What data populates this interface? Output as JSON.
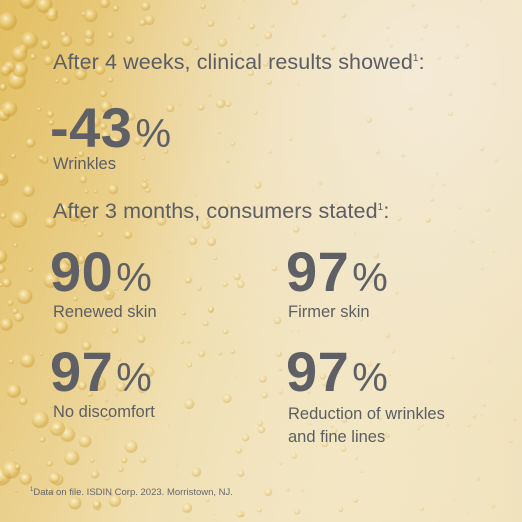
{
  "headline_1": {
    "text": "After 4 weeks, clinical results showed",
    "sup": "1",
    "suffix": ":"
  },
  "stat_main": {
    "value": "-43",
    "unit": "%",
    "label": "Wrinkles"
  },
  "headline_2": {
    "text": "After 3 months, consumers stated",
    "sup": "1",
    "suffix": ":"
  },
  "stats": [
    {
      "value": "90",
      "unit": "%",
      "label": "Renewed skin"
    },
    {
      "value": "97",
      "unit": "%",
      "label": "Firmer skin"
    },
    {
      "value": "97",
      "unit": "%",
      "label": "No discomfort"
    },
    {
      "value": "97",
      "unit": "%",
      "label_line1": "Reduction of wrinkles",
      "label_line2": "and fine lines"
    }
  ],
  "footnote": {
    "sup": "1",
    "text": "Data on file. ISDIN Corp. 2023. Morristown, NJ."
  },
  "colors": {
    "text": "#5e6065",
    "background_gold": "#e6c66f",
    "background_cream": "#f1e3bd"
  }
}
